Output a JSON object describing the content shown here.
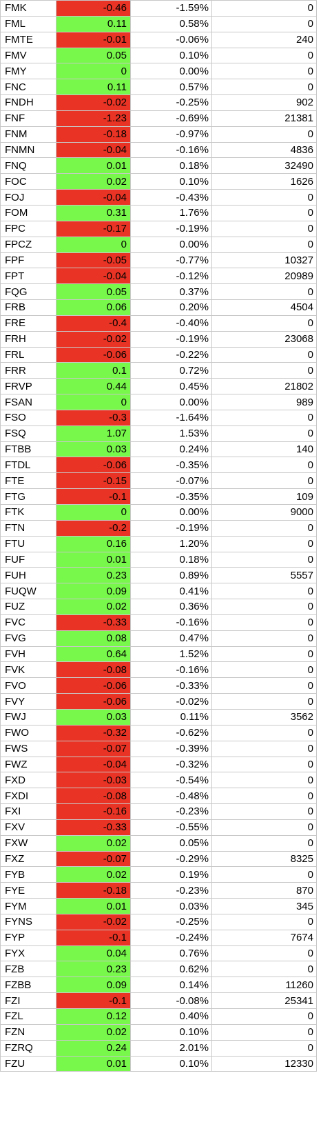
{
  "colors": {
    "positive": "#77f84a",
    "negative": "#e93324",
    "grid": "#c8c8c8"
  },
  "rows": [
    {
      "symbol": "FMK",
      "change": "-0.46",
      "pct": "-1.59%",
      "volume": "0"
    },
    {
      "symbol": "FML",
      "change": "0.11",
      "pct": "0.58%",
      "volume": "0"
    },
    {
      "symbol": "FMTE",
      "change": "-0.01",
      "pct": "-0.06%",
      "volume": "240"
    },
    {
      "symbol": "FMV",
      "change": "0.05",
      "pct": "0.10%",
      "volume": "0"
    },
    {
      "symbol": "FMY",
      "change": "0",
      "pct": "0.00%",
      "volume": "0"
    },
    {
      "symbol": "FNC",
      "change": "0.11",
      "pct": "0.57%",
      "volume": "0"
    },
    {
      "symbol": "FNDH",
      "change": "-0.02",
      "pct": "-0.25%",
      "volume": "902"
    },
    {
      "symbol": "FNF",
      "change": "-1.23",
      "pct": "-0.69%",
      "volume": "21381"
    },
    {
      "symbol": "FNM",
      "change": "-0.18",
      "pct": "-0.97%",
      "volume": "0"
    },
    {
      "symbol": "FNMN",
      "change": "-0.04",
      "pct": "-0.16%",
      "volume": "4836"
    },
    {
      "symbol": "FNQ",
      "change": "0.01",
      "pct": "0.18%",
      "volume": "32490"
    },
    {
      "symbol": "FOC",
      "change": "0.02",
      "pct": "0.10%",
      "volume": "1626"
    },
    {
      "symbol": "FOJ",
      "change": "-0.04",
      "pct": "-0.43%",
      "volume": "0"
    },
    {
      "symbol": "FOM",
      "change": "0.31",
      "pct": "1.76%",
      "volume": "0"
    },
    {
      "symbol": "FPC",
      "change": "-0.17",
      "pct": "-0.19%",
      "volume": "0"
    },
    {
      "symbol": "FPCZ",
      "change": "0",
      "pct": "0.00%",
      "volume": "0"
    },
    {
      "symbol": "FPF",
      "change": "-0.05",
      "pct": "-0.77%",
      "volume": "10327"
    },
    {
      "symbol": "FPT",
      "change": "-0.04",
      "pct": "-0.12%",
      "volume": "20989"
    },
    {
      "symbol": "FQG",
      "change": "0.05",
      "pct": "0.37%",
      "volume": "0"
    },
    {
      "symbol": "FRB",
      "change": "0.06",
      "pct": "0.20%",
      "volume": "4504"
    },
    {
      "symbol": "FRE",
      "change": "-0.4",
      "pct": "-0.40%",
      "volume": "0"
    },
    {
      "symbol": "FRH",
      "change": "-0.02",
      "pct": "-0.19%",
      "volume": "23068"
    },
    {
      "symbol": "FRL",
      "change": "-0.06",
      "pct": "-0.22%",
      "volume": "0"
    },
    {
      "symbol": "FRR",
      "change": "0.1",
      "pct": "0.72%",
      "volume": "0"
    },
    {
      "symbol": "FRVP",
      "change": "0.44",
      "pct": "0.45%",
      "volume": "21802"
    },
    {
      "symbol": "FSAN",
      "change": "0",
      "pct": "0.00%",
      "volume": "989"
    },
    {
      "symbol": "FSO",
      "change": "-0.3",
      "pct": "-1.64%",
      "volume": "0"
    },
    {
      "symbol": "FSQ",
      "change": "1.07",
      "pct": "1.53%",
      "volume": "0"
    },
    {
      "symbol": "FTBB",
      "change": "0.03",
      "pct": "0.24%",
      "volume": "140"
    },
    {
      "symbol": "FTDL",
      "change": "-0.06",
      "pct": "-0.35%",
      "volume": "0"
    },
    {
      "symbol": "FTE",
      "change": "-0.15",
      "pct": "-0.07%",
      "volume": "0"
    },
    {
      "symbol": "FTG",
      "change": "-0.1",
      "pct": "-0.35%",
      "volume": "109"
    },
    {
      "symbol": "FTK",
      "change": "0",
      "pct": "0.00%",
      "volume": "9000"
    },
    {
      "symbol": "FTN",
      "change": "-0.2",
      "pct": "-0.19%",
      "volume": "0"
    },
    {
      "symbol": "FTU",
      "change": "0.16",
      "pct": "1.20%",
      "volume": "0"
    },
    {
      "symbol": "FUF",
      "change": "0.01",
      "pct": "0.18%",
      "volume": "0"
    },
    {
      "symbol": "FUH",
      "change": "0.23",
      "pct": "0.89%",
      "volume": "5557"
    },
    {
      "symbol": "FUQW",
      "change": "0.09",
      "pct": "0.41%",
      "volume": "0"
    },
    {
      "symbol": "FUZ",
      "change": "0.02",
      "pct": "0.36%",
      "volume": "0"
    },
    {
      "symbol": "FVC",
      "change": "-0.33",
      "pct": "-0.16%",
      "volume": "0"
    },
    {
      "symbol": "FVG",
      "change": "0.08",
      "pct": "0.47%",
      "volume": "0"
    },
    {
      "symbol": "FVH",
      "change": "0.64",
      "pct": "1.52%",
      "volume": "0"
    },
    {
      "symbol": "FVK",
      "change": "-0.08",
      "pct": "-0.16%",
      "volume": "0"
    },
    {
      "symbol": "FVO",
      "change": "-0.06",
      "pct": "-0.33%",
      "volume": "0"
    },
    {
      "symbol": "FVY",
      "change": "-0.06",
      "pct": "-0.02%",
      "volume": "0"
    },
    {
      "symbol": "FWJ",
      "change": "0.03",
      "pct": "0.11%",
      "volume": "3562"
    },
    {
      "symbol": "FWO",
      "change": "-0.32",
      "pct": "-0.62%",
      "volume": "0"
    },
    {
      "symbol": "FWS",
      "change": "-0.07",
      "pct": "-0.39%",
      "volume": "0"
    },
    {
      "symbol": "FWZ",
      "change": "-0.04",
      "pct": "-0.32%",
      "volume": "0"
    },
    {
      "symbol": "FXD",
      "change": "-0.03",
      "pct": "-0.54%",
      "volume": "0"
    },
    {
      "symbol": "FXDI",
      "change": "-0.08",
      "pct": "-0.48%",
      "volume": "0"
    },
    {
      "symbol": "FXI",
      "change": "-0.16",
      "pct": "-0.23%",
      "volume": "0"
    },
    {
      "symbol": "FXV",
      "change": "-0.33",
      "pct": "-0.55%",
      "volume": "0"
    },
    {
      "symbol": "FXW",
      "change": "0.02",
      "pct": "0.05%",
      "volume": "0"
    },
    {
      "symbol": "FXZ",
      "change": "-0.07",
      "pct": "-0.29%",
      "volume": "8325"
    },
    {
      "symbol": "FYB",
      "change": "0.02",
      "pct": "0.19%",
      "volume": "0"
    },
    {
      "symbol": "FYE",
      "change": "-0.18",
      "pct": "-0.23%",
      "volume": "870"
    },
    {
      "symbol": "FYM",
      "change": "0.01",
      "pct": "0.03%",
      "volume": "345"
    },
    {
      "symbol": "FYNS",
      "change": "-0.02",
      "pct": "-0.25%",
      "volume": "0"
    },
    {
      "symbol": "FYP",
      "change": "-0.1",
      "pct": "-0.24%",
      "volume": "7674"
    },
    {
      "symbol": "FYX",
      "change": "0.04",
      "pct": "0.76%",
      "volume": "0"
    },
    {
      "symbol": "FZB",
      "change": "0.23",
      "pct": "0.62%",
      "volume": "0"
    },
    {
      "symbol": "FZBB",
      "change": "0.09",
      "pct": "0.14%",
      "volume": "11260"
    },
    {
      "symbol": "FZI",
      "change": "-0.1",
      "pct": "-0.08%",
      "volume": "25341"
    },
    {
      "symbol": "FZL",
      "change": "0.12",
      "pct": "0.40%",
      "volume": "0"
    },
    {
      "symbol": "FZN",
      "change": "0.02",
      "pct": "0.10%",
      "volume": "0"
    },
    {
      "symbol": "FZRQ",
      "change": "0.24",
      "pct": "2.01%",
      "volume": "0"
    },
    {
      "symbol": "FZU",
      "change": "0.01",
      "pct": "0.10%",
      "volume": "12330"
    }
  ]
}
